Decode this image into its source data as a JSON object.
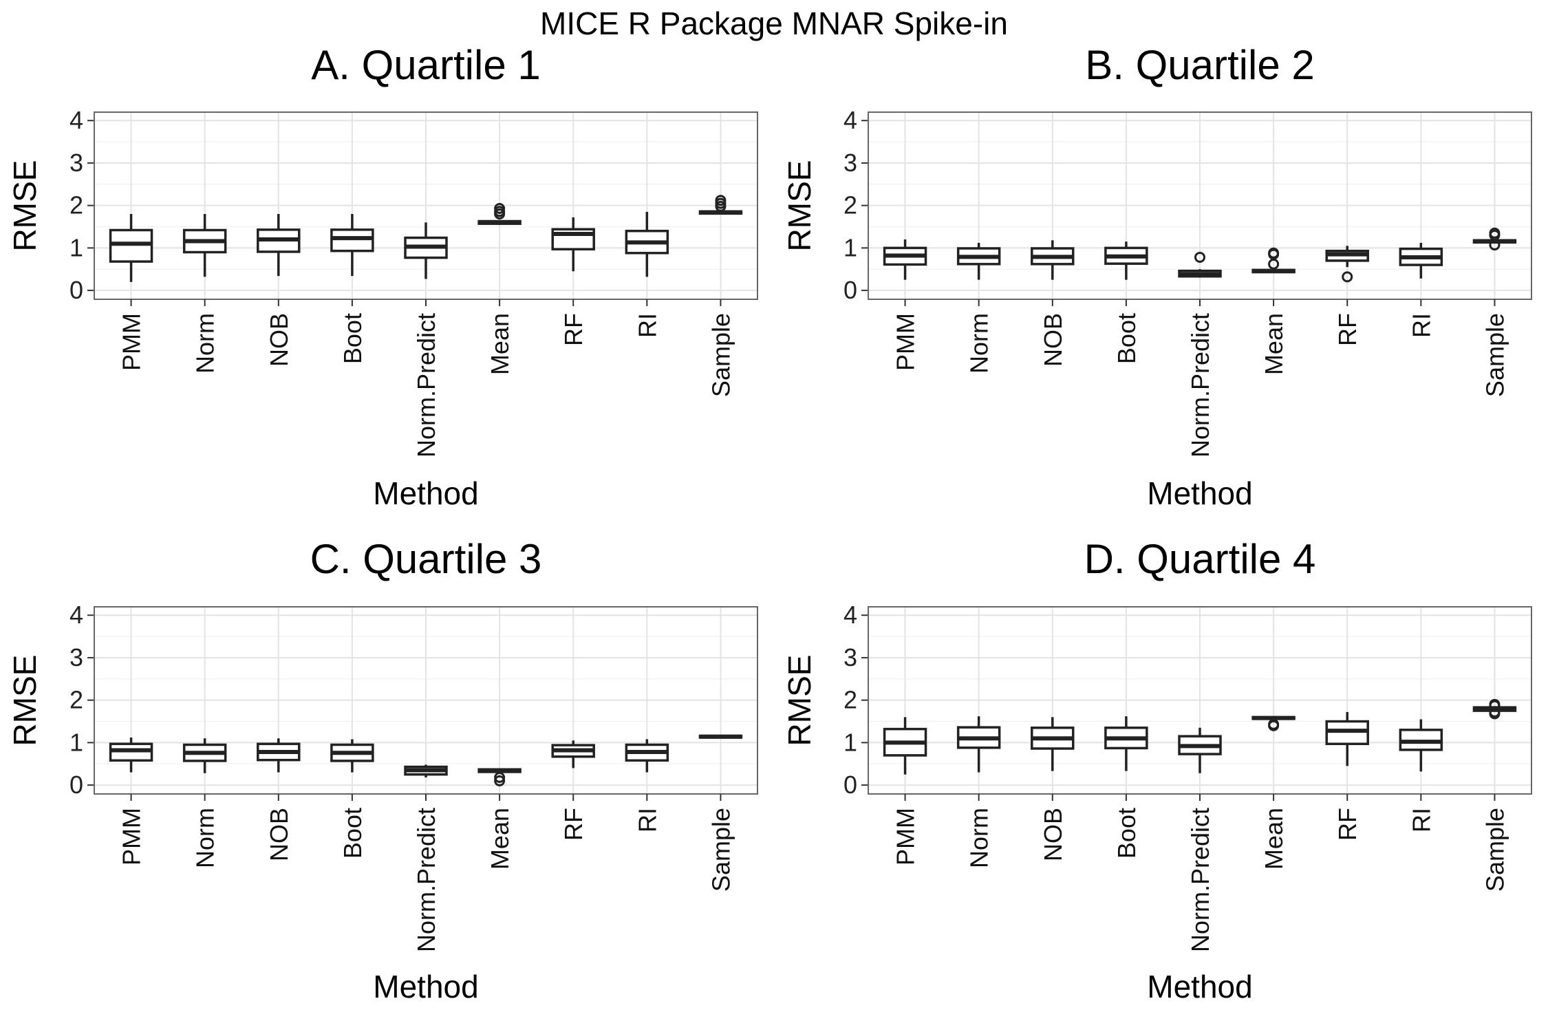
{
  "figure": {
    "title": "MICE R Package MNAR Spike-in"
  },
  "chart_data": [
    {
      "type": "box",
      "panel_title": "A. Quartile 1",
      "xlabel": "Method",
      "ylabel": "RMSE",
      "ylim": [
        0,
        4
      ],
      "yticks": [
        0,
        1,
        2,
        3,
        4
      ],
      "grid": true,
      "categories": [
        "PMM",
        "Norm",
        "NOB",
        "Boot",
        "Norm.Predict",
        "Mean",
        "RF",
        "RI",
        "Sample"
      ],
      "boxes": [
        {
          "min": 0.2,
          "q1": 0.68,
          "median": 1.1,
          "q3": 1.42,
          "max": 1.8,
          "outliers": []
        },
        {
          "min": 0.32,
          "q1": 0.9,
          "median": 1.16,
          "q3": 1.42,
          "max": 1.8,
          "outliers": []
        },
        {
          "min": 0.34,
          "q1": 0.91,
          "median": 1.2,
          "q3": 1.43,
          "max": 1.8,
          "outliers": []
        },
        {
          "min": 0.34,
          "q1": 0.93,
          "median": 1.23,
          "q3": 1.43,
          "max": 1.8,
          "outliers": []
        },
        {
          "min": 0.27,
          "q1": 0.77,
          "median": 1.03,
          "q3": 1.24,
          "max": 1.6,
          "outliers": []
        },
        {
          "min": 1.56,
          "q1": 1.57,
          "median": 1.6,
          "q3": 1.63,
          "max": 1.65,
          "outliers": [
            1.8,
            1.86,
            1.93
          ]
        },
        {
          "min": 0.45,
          "q1": 0.97,
          "median": 1.33,
          "q3": 1.44,
          "max": 1.72,
          "outliers": []
        },
        {
          "min": 0.32,
          "q1": 0.88,
          "median": 1.13,
          "q3": 1.4,
          "max": 1.85,
          "outliers": []
        },
        {
          "min": 1.8,
          "q1": 1.81,
          "median": 1.84,
          "q3": 1.86,
          "max": 1.88,
          "outliers": [
            1.98,
            2.05,
            2.12
          ]
        }
      ]
    },
    {
      "type": "box",
      "panel_title": "B. Quartile 2",
      "xlabel": "Method",
      "ylabel": "RMSE",
      "ylim": [
        0,
        4
      ],
      "yticks": [
        0,
        1,
        2,
        3,
        4
      ],
      "grid": true,
      "categories": [
        "PMM",
        "Norm",
        "NOB",
        "Boot",
        "Norm.Predict",
        "Mean",
        "RF",
        "RI",
        "Sample"
      ],
      "boxes": [
        {
          "min": 0.25,
          "q1": 0.61,
          "median": 0.82,
          "q3": 1.0,
          "max": 1.2,
          "outliers": []
        },
        {
          "min": 0.25,
          "q1": 0.62,
          "median": 0.79,
          "q3": 0.99,
          "max": 1.12,
          "outliers": []
        },
        {
          "min": 0.25,
          "q1": 0.62,
          "median": 0.79,
          "q3": 0.99,
          "max": 1.18,
          "outliers": []
        },
        {
          "min": 0.25,
          "q1": 0.63,
          "median": 0.8,
          "q3": 1.0,
          "max": 1.15,
          "outliers": []
        },
        {
          "min": 0.3,
          "q1": 0.33,
          "median": 0.38,
          "q3": 0.46,
          "max": 0.5,
          "outliers": [
            0.78
          ]
        },
        {
          "min": 0.42,
          "q1": 0.43,
          "median": 0.46,
          "q3": 0.48,
          "max": 0.49,
          "outliers": [
            0.62,
            0.85,
            0.88
          ]
        },
        {
          "min": 0.55,
          "q1": 0.7,
          "median": 0.85,
          "q3": 0.93,
          "max": 1.05,
          "outliers": [
            0.32
          ]
        },
        {
          "min": 0.28,
          "q1": 0.6,
          "median": 0.78,
          "q3": 0.98,
          "max": 1.12,
          "outliers": []
        },
        {
          "min": 1.12,
          "q1": 1.13,
          "median": 1.16,
          "q3": 1.18,
          "max": 1.2,
          "outliers": [
            1.07,
            1.3,
            1.35
          ]
        }
      ]
    },
    {
      "type": "box",
      "panel_title": "C. Quartile 3",
      "xlabel": "Method",
      "ylabel": "RMSE",
      "ylim": [
        0,
        4
      ],
      "yticks": [
        0,
        1,
        2,
        3,
        4
      ],
      "grid": true,
      "categories": [
        "PMM",
        "Norm",
        "NOB",
        "Boot",
        "Norm.Predict",
        "Mean",
        "RF",
        "RI",
        "Sample"
      ],
      "boxes": [
        {
          "min": 0.3,
          "q1": 0.58,
          "median": 0.82,
          "q3": 0.97,
          "max": 1.12,
          "outliers": []
        },
        {
          "min": 0.28,
          "q1": 0.57,
          "median": 0.76,
          "q3": 0.95,
          "max": 1.1,
          "outliers": []
        },
        {
          "min": 0.3,
          "q1": 0.59,
          "median": 0.78,
          "q3": 0.97,
          "max": 1.1,
          "outliers": []
        },
        {
          "min": 0.3,
          "q1": 0.57,
          "median": 0.76,
          "q3": 0.95,
          "max": 1.08,
          "outliers": []
        },
        {
          "min": 0.18,
          "q1": 0.25,
          "median": 0.35,
          "q3": 0.43,
          "max": 0.48,
          "outliers": []
        },
        {
          "min": 0.3,
          "q1": 0.31,
          "median": 0.34,
          "q3": 0.37,
          "max": 0.38,
          "outliers": [
            0.1,
            0.18
          ]
        },
        {
          "min": 0.4,
          "q1": 0.67,
          "median": 0.82,
          "q3": 0.94,
          "max": 1.05,
          "outliers": []
        },
        {
          "min": 0.3,
          "q1": 0.58,
          "median": 0.78,
          "q3": 0.95,
          "max": 1.08,
          "outliers": []
        },
        {
          "min": 1.11,
          "q1": 1.12,
          "median": 1.14,
          "q3": 1.16,
          "max": 1.17,
          "outliers": []
        }
      ]
    },
    {
      "type": "box",
      "panel_title": "D. Quartile 4",
      "xlabel": "Method",
      "ylabel": "RMSE",
      "ylim": [
        0,
        4
      ],
      "yticks": [
        0,
        1,
        2,
        3,
        4
      ],
      "grid": true,
      "categories": [
        "PMM",
        "Norm",
        "NOB",
        "Boot",
        "Norm.Predict",
        "Mean",
        "RF",
        "RI",
        "Sample"
      ],
      "boxes": [
        {
          "min": 0.25,
          "q1": 0.7,
          "median": 1.0,
          "q3": 1.32,
          "max": 1.6,
          "outliers": []
        },
        {
          "min": 0.3,
          "q1": 0.88,
          "median": 1.1,
          "q3": 1.36,
          "max": 1.62,
          "outliers": []
        },
        {
          "min": 0.33,
          "q1": 0.86,
          "median": 1.1,
          "q3": 1.35,
          "max": 1.6,
          "outliers": []
        },
        {
          "min": 0.33,
          "q1": 0.87,
          "median": 1.1,
          "q3": 1.35,
          "max": 1.62,
          "outliers": []
        },
        {
          "min": 0.28,
          "q1": 0.73,
          "median": 0.92,
          "q3": 1.15,
          "max": 1.35,
          "outliers": []
        },
        {
          "min": 1.55,
          "q1": 1.56,
          "median": 1.58,
          "q3": 1.6,
          "max": 1.62,
          "outliers": [
            1.4,
            1.43
          ]
        },
        {
          "min": 0.45,
          "q1": 0.97,
          "median": 1.28,
          "q3": 1.5,
          "max": 1.72,
          "outliers": []
        },
        {
          "min": 0.32,
          "q1": 0.83,
          "median": 1.02,
          "q3": 1.3,
          "max": 1.55,
          "outliers": []
        },
        {
          "min": 1.74,
          "q1": 1.75,
          "median": 1.79,
          "q3": 1.83,
          "max": 1.86,
          "outliers": [
            1.68,
            1.72,
            1.87,
            1.9
          ]
        }
      ]
    }
  ]
}
